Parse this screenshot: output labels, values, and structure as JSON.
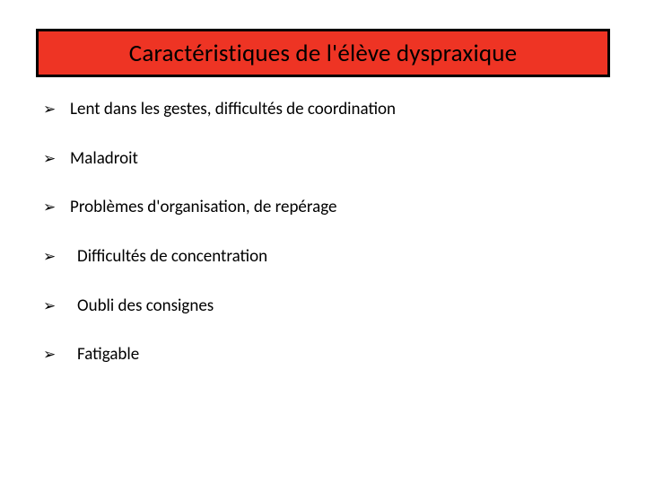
{
  "title": {
    "text": "Caractéristiques de l'élève dyspraxique",
    "background_color": "#ee3424",
    "border_color": "#000000",
    "text_color": "#000000",
    "fontsize": 27
  },
  "bullet_glyph": "➢",
  "items": [
    {
      "text": "Lent dans les gestes, difficultés de coordination",
      "indent": false
    },
    {
      "text": "Maladroit",
      "indent": false
    },
    {
      "text": "Problèmes d'organisation, de repérage",
      "indent": false
    },
    {
      "text": "Difficultés de concentration",
      "indent": true
    },
    {
      "text": "Oubli des consignes",
      "indent": true
    },
    {
      "text": "Fatigable",
      "indent": true
    }
  ],
  "item_fontsize": 19,
  "item_color": "#000000",
  "background_color": "#ffffff"
}
